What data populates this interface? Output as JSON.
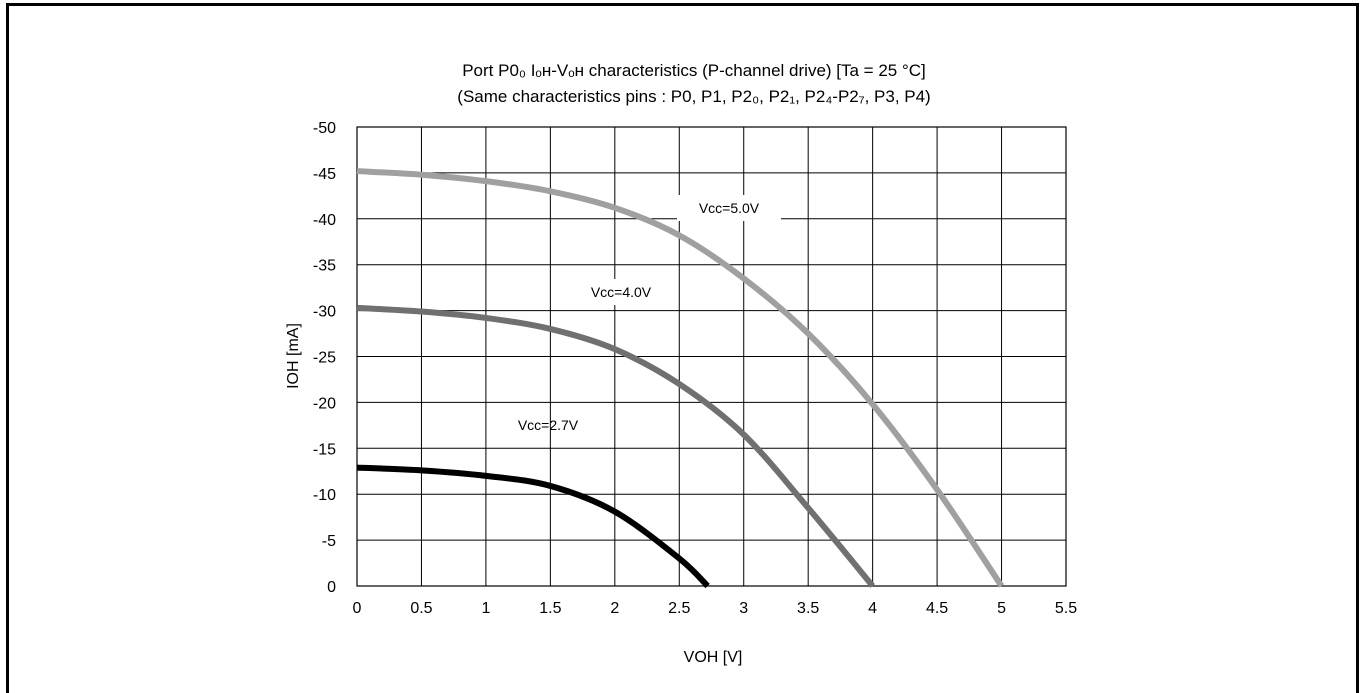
{
  "chart_data": {
    "type": "line",
    "title_line1": "Port P0₀ Iₒʜ-Vₒʜ characteristics (P-channel drive) [Ta = 25 °C]",
    "title_line2": "(Same characteristics pins : P0, P1, P2₀, P2₁, P2₄-P2₇, P3, P4)",
    "xlabel": "VOH [V]",
    "ylabel": "IOH [mA]",
    "xlim": [
      0,
      5.5
    ],
    "ylim": [
      0,
      -50
    ],
    "grid": true,
    "x_ticks": [
      "0",
      "0.5",
      "1",
      "1.5",
      "2",
      "2.5",
      "3",
      "3.5",
      "4",
      "4.5",
      "5",
      "5.5"
    ],
    "y_ticks": [
      "0",
      "-5",
      "-10",
      "-15",
      "-20",
      "-25",
      "-30",
      "-35",
      "-40",
      "-45",
      "-50"
    ],
    "series": [
      {
        "name": "Vcc=5.0V",
        "color": "#a0a0a0",
        "x": [
          0,
          0.5,
          1.0,
          1.5,
          2.0,
          2.5,
          3.0,
          3.5,
          4.0,
          4.5,
          5.0
        ],
        "y": [
          -45.2,
          -44.8,
          -44.1,
          -43.0,
          -41.2,
          -38.2,
          -33.5,
          -27.5,
          -19.8,
          -10.5,
          0
        ]
      },
      {
        "name": "Vcc=4.0V",
        "color": "#707070",
        "x": [
          0,
          0.5,
          1.0,
          1.5,
          2.0,
          2.5,
          3.0,
          3.5,
          4.0
        ],
        "y": [
          -30.3,
          -29.9,
          -29.2,
          -28.0,
          -25.8,
          -22.0,
          -16.5,
          -8.5,
          0
        ]
      },
      {
        "name": "Vcc=2.7V",
        "color": "#000000",
        "x": [
          0,
          0.5,
          1.0,
          1.5,
          2.0,
          2.5,
          2.72
        ],
        "y": [
          -12.9,
          -12.6,
          -12.0,
          -10.9,
          -8.1,
          -3.0,
          0
        ]
      }
    ]
  }
}
